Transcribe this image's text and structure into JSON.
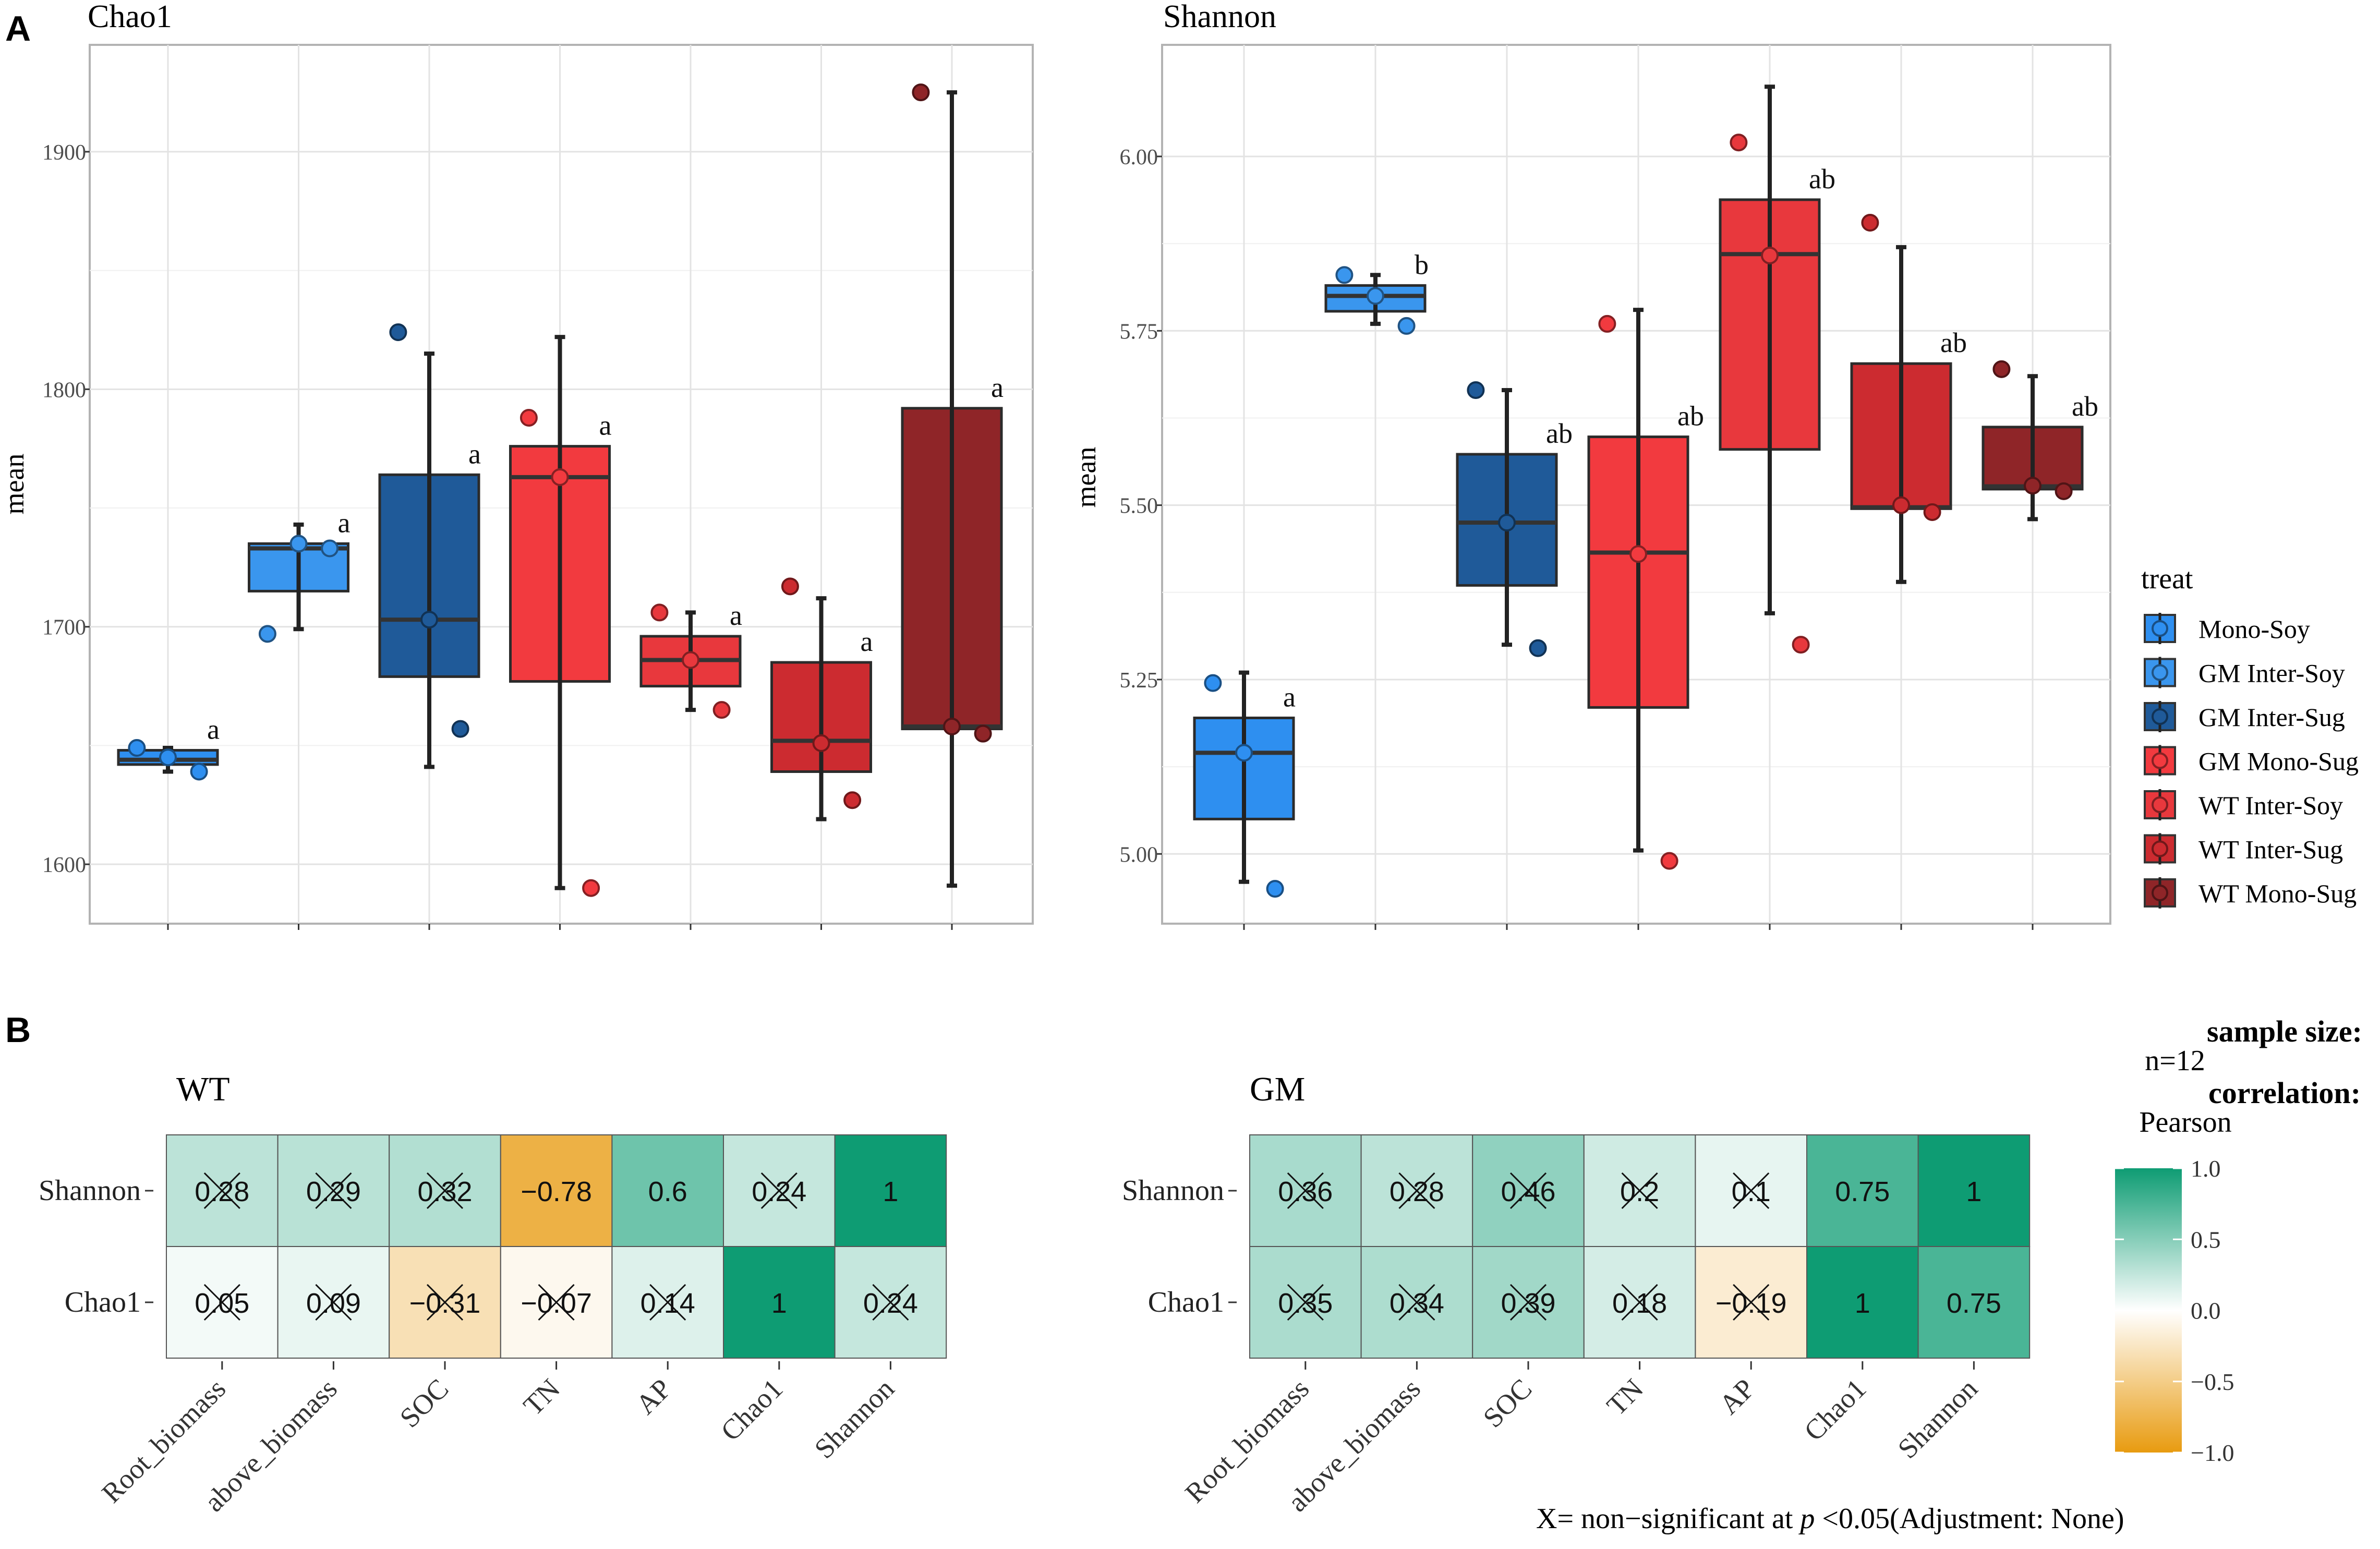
{
  "figure": {
    "panel_a_letter": "A",
    "panel_b_letter": "B"
  },
  "legend": {
    "title": "treat",
    "items": [
      {
        "label": "Mono-Soy",
        "color": "#2E8FF0"
      },
      {
        "label": "GM Inter-Soy",
        "color": "#3A96EE"
      },
      {
        "label": "GM Inter-Sug",
        "color": "#1F5A99"
      },
      {
        "label": "GM Mono-Sug",
        "color": "#F23A3F"
      },
      {
        "label": "WT Inter-Soy",
        "color": "#E8383D"
      },
      {
        "label": "WT Inter-Sug",
        "color": "#CC2B30"
      },
      {
        "label": "WT Mono-Sug",
        "color": "#8F2528"
      }
    ]
  },
  "chart_data": [
    {
      "type": "box",
      "title": "Chao1",
      "ylabel": "mean",
      "xlabel": "",
      "ylim": [
        1575,
        1945
      ],
      "yticks": [
        1600,
        1700,
        1800,
        1900
      ],
      "grid": true,
      "groups": [
        {
          "name": "Mono-Soy",
          "q1": 1642,
          "median": 1644,
          "q3": 1648,
          "whisker_low": 1639,
          "whisker_high": 1649,
          "points": [
            1649,
            1645,
            1639
          ],
          "letter": "a",
          "color": "#2E8FF0"
        },
        {
          "name": "GM Inter-Soy",
          "q1": 1715,
          "median": 1733,
          "q3": 1735,
          "whisker_low": 1699,
          "whisker_high": 1743,
          "points": [
            1697,
            1735,
            1733
          ],
          "letter": "a",
          "color": "#3A96EE"
        },
        {
          "name": "GM Inter-Sug",
          "q1": 1679,
          "median": 1703,
          "q3": 1764,
          "whisker_low": 1641,
          "whisker_high": 1815,
          "points": [
            1824,
            1703,
            1657
          ],
          "letter": "a",
          "color": "#1F5A99"
        },
        {
          "name": "GM Mono-Sug",
          "q1": 1677,
          "median": 1763,
          "q3": 1776,
          "whisker_low": 1590,
          "whisker_high": 1822,
          "points": [
            1788,
            1763,
            1590
          ],
          "letter": "a",
          "color": "#F23A3F"
        },
        {
          "name": "WT Inter-Soy",
          "q1": 1675,
          "median": 1686,
          "q3": 1696,
          "whisker_low": 1665,
          "whisker_high": 1706,
          "points": [
            1706,
            1686,
            1665
          ],
          "letter": "a",
          "color": "#E8383D"
        },
        {
          "name": "WT Inter-Sug",
          "q1": 1639,
          "median": 1652,
          "q3": 1685,
          "whisker_low": 1619,
          "whisker_high": 1712,
          "points": [
            1717,
            1651,
            1627
          ],
          "letter": "a",
          "color": "#CC2B30"
        },
        {
          "name": "WT Mono-Sug",
          "q1": 1657,
          "median": 1658,
          "q3": 1792,
          "whisker_low": 1591,
          "whisker_high": 1925,
          "points": [
            1925,
            1658,
            1655
          ],
          "letter": "a",
          "color": "#8F2528"
        }
      ]
    },
    {
      "type": "box",
      "title": "Shannon",
      "ylabel": "mean",
      "xlabel": "",
      "ylim": [
        4.9,
        6.16
      ],
      "yticks": [
        5.0,
        5.25,
        5.5,
        5.75,
        6.0
      ],
      "ytick_labels": [
        "5.00",
        "5.25",
        "5.50",
        "5.75",
        "6.00"
      ],
      "grid": true,
      "groups": [
        {
          "name": "Mono-Soy",
          "q1": 5.05,
          "median": 5.145,
          "q3": 5.195,
          "whisker_low": 4.96,
          "whisker_high": 5.26,
          "points": [
            5.245,
            5.145,
            4.95
          ],
          "letter": "a",
          "color": "#2E8FF0"
        },
        {
          "name": "GM Inter-Soy",
          "q1": 5.778,
          "median": 5.8,
          "q3": 5.815,
          "whisker_low": 5.76,
          "whisker_high": 5.83,
          "points": [
            5.83,
            5.8,
            5.757
          ],
          "letter": "b",
          "color": "#3A96EE"
        },
        {
          "name": "GM Inter-Sug",
          "q1": 5.385,
          "median": 5.475,
          "q3": 5.573,
          "whisker_low": 5.3,
          "whisker_high": 5.665,
          "points": [
            5.665,
            5.475,
            5.295
          ],
          "letter": "ab",
          "color": "#1F5A99"
        },
        {
          "name": "GM Mono-Sug",
          "q1": 5.21,
          "median": 5.432,
          "q3": 5.598,
          "whisker_low": 5.005,
          "whisker_high": 5.78,
          "points": [
            5.76,
            5.43,
            4.99
          ],
          "letter": "ab",
          "color": "#F23A3F"
        },
        {
          "name": "WT Inter-Soy",
          "q1": 5.58,
          "median": 5.86,
          "q3": 5.938,
          "whisker_low": 5.345,
          "whisker_high": 6.1,
          "points": [
            6.02,
            5.858,
            5.3
          ],
          "letter": "ab",
          "color": "#E8383D"
        },
        {
          "name": "WT Inter-Sug",
          "q1": 5.495,
          "median": 5.497,
          "q3": 5.703,
          "whisker_low": 5.39,
          "whisker_high": 5.87,
          "points": [
            5.905,
            5.5,
            5.49
          ],
          "letter": "ab",
          "color": "#CC2B30"
        },
        {
          "name": "WT Mono-Sug",
          "q1": 5.523,
          "median": 5.527,
          "q3": 5.612,
          "whisker_low": 5.48,
          "whisker_high": 5.685,
          "points": [
            5.695,
            5.528,
            5.52
          ],
          "letter": "ab",
          "color": "#8F2528"
        }
      ]
    },
    {
      "type": "heatmap",
      "title": "WT",
      "rows": [
        "Shannon",
        "Chao1"
      ],
      "columns": [
        "Root_biomass",
        "above_biomass",
        "SOC",
        "TN",
        "AP",
        "Chao1",
        "Shannon"
      ],
      "values": [
        [
          0.28,
          0.29,
          0.32,
          -0.78,
          0.6,
          0.24,
          1
        ],
        [
          0.05,
          0.09,
          -0.31,
          -0.07,
          0.14,
          1,
          0.24
        ]
      ],
      "labels": [
        [
          "0.28",
          "0.29",
          "0.32",
          "−0.78",
          "0.6",
          "0.24",
          "1"
        ],
        [
          "0.05",
          "0.09",
          "−0.31",
          "−0.07",
          "0.14",
          "1",
          "0.24"
        ]
      ],
      "nonsignificant": [
        [
          true,
          true,
          true,
          false,
          false,
          true,
          false
        ],
        [
          true,
          true,
          true,
          true,
          true,
          false,
          true
        ]
      ]
    },
    {
      "type": "heatmap",
      "title": "GM",
      "rows": [
        "Shannon",
        "Chao1"
      ],
      "columns": [
        "Root_biomass",
        "above_biomass",
        "SOC",
        "TN",
        "AP",
        "Chao1",
        "Shannon"
      ],
      "values": [
        [
          0.36,
          0.28,
          0.46,
          0.2,
          0.1,
          0.75,
          1
        ],
        [
          0.35,
          0.34,
          0.39,
          0.18,
          -0.19,
          1,
          0.75
        ]
      ],
      "labels": [
        [
          "0.36",
          "0.28",
          "0.46",
          "0.2",
          "0.1",
          "0.75",
          "1"
        ],
        [
          "0.35",
          "0.34",
          "0.39",
          "0.18",
          "−0.19",
          "1",
          "0.75"
        ]
      ],
      "nonsignificant": [
        [
          true,
          true,
          true,
          true,
          true,
          false,
          false
        ],
        [
          true,
          true,
          true,
          true,
          true,
          false,
          false
        ]
      ]
    }
  ],
  "colorbar": {
    "sample_size_title": "sample size:",
    "sample_size_value": "n=12",
    "correlation_title": "correlation:",
    "correlation_value": "Pearson",
    "ticks": [
      1.0,
      0.5,
      0.0,
      -0.5,
      -1.0
    ],
    "tick_labels": [
      "1.0",
      "0.5",
      "0.0",
      "−0.5",
      "−1.0"
    ],
    "color_pos": "#0E9C73",
    "color_mid": "#FFFFFF",
    "color_neg": "#E89B10"
  },
  "footnote": {
    "prefix": "X= non−significant at ",
    "p": "p",
    "suffix": " <0.05(Adjustment: None)"
  }
}
